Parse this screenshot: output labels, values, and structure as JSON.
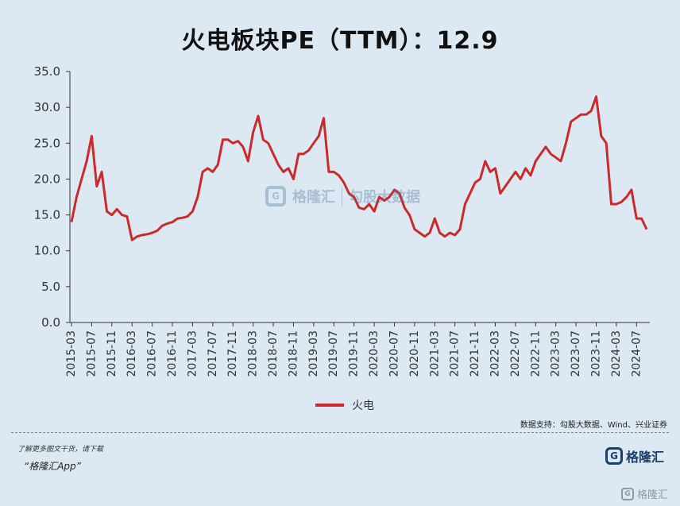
{
  "title": "火电板块PE（TTM）：12.9",
  "source": "数据支持：勾股大数据、Wind、兴业证券",
  "promo": {
    "line1": "了解更多图文干货，请下载",
    "line2": "“格隆汇App”"
  },
  "brand": {
    "name": "格隆汇",
    "icon_letter": "G"
  },
  "watermark": {
    "brand": "格隆汇",
    "partner": "勾股大数据"
  },
  "colors": {
    "series": "#cc2a2a",
    "axis": "#333333",
    "background": "#dce9f2"
  },
  "chart_data": {
    "type": "line",
    "title": "火电板块PE（TTM）：12.9",
    "xlabel": "",
    "ylabel": "",
    "ylim": [
      0,
      35
    ],
    "yticks": [
      "0.0",
      "5.0",
      "10.0",
      "15.0",
      "20.0",
      "25.0",
      "30.0",
      "35.0"
    ],
    "xticks": [
      "2015-03",
      "2015-07",
      "2015-11",
      "2016-03",
      "2016-07",
      "2016-11",
      "2017-03",
      "2017-07",
      "2017-11",
      "2018-03",
      "2018-07",
      "2018-11",
      "2019-03",
      "2019-07",
      "2019-11",
      "2020-03",
      "2020-07",
      "2020-11",
      "2021-03",
      "2021-07",
      "2021-11",
      "2022-03",
      "2022-07",
      "2022-11",
      "2023-03",
      "2023-07",
      "2023-11",
      "2024-03",
      "2024-07"
    ],
    "grid": false,
    "legend_position": "bottom",
    "series": [
      {
        "name": "火电",
        "x": [
          "2015-03",
          "2015-04",
          "2015-05",
          "2015-06",
          "2015-07",
          "2015-08",
          "2015-09",
          "2015-10",
          "2015-11",
          "2015-12",
          "2016-01",
          "2016-02",
          "2016-03",
          "2016-04",
          "2016-05",
          "2016-06",
          "2016-07",
          "2016-08",
          "2016-09",
          "2016-10",
          "2016-11",
          "2016-12",
          "2017-01",
          "2017-02",
          "2017-03",
          "2017-04",
          "2017-05",
          "2017-06",
          "2017-07",
          "2017-08",
          "2017-09",
          "2017-10",
          "2017-11",
          "2017-12",
          "2018-01",
          "2018-02",
          "2018-03",
          "2018-04",
          "2018-05",
          "2018-06",
          "2018-07",
          "2018-08",
          "2018-09",
          "2018-10",
          "2018-11",
          "2018-12",
          "2019-01",
          "2019-02",
          "2019-03",
          "2019-04",
          "2019-05",
          "2019-06",
          "2019-07",
          "2019-08",
          "2019-09",
          "2019-10",
          "2019-11",
          "2019-12",
          "2020-01",
          "2020-02",
          "2020-03",
          "2020-04",
          "2020-05",
          "2020-06",
          "2020-07",
          "2020-08",
          "2020-09",
          "2020-10",
          "2020-11",
          "2020-12",
          "2021-01",
          "2021-02",
          "2021-03",
          "2021-04",
          "2021-05",
          "2021-06",
          "2021-07",
          "2021-08",
          "2021-09",
          "2021-10",
          "2021-11",
          "2021-12",
          "2022-01",
          "2022-02",
          "2022-03",
          "2022-04",
          "2022-05",
          "2022-06",
          "2022-07",
          "2022-08",
          "2022-09",
          "2022-10",
          "2022-11",
          "2022-12",
          "2023-01",
          "2023-02",
          "2023-03",
          "2023-04",
          "2023-05",
          "2023-06",
          "2023-07",
          "2023-08",
          "2023-09",
          "2023-10",
          "2023-11",
          "2023-12",
          "2024-01",
          "2024-02",
          "2024-03",
          "2024-04",
          "2024-05",
          "2024-06",
          "2024-07",
          "2024-08",
          "2024-09"
        ],
        "values": [
          14.0,
          17.5,
          20.0,
          22.5,
          26.0,
          19.0,
          21.0,
          15.5,
          15.0,
          15.8,
          15.0,
          14.8,
          11.5,
          12.0,
          12.2,
          12.3,
          12.5,
          12.8,
          13.5,
          13.8,
          14.0,
          14.5,
          14.6,
          14.8,
          15.5,
          17.5,
          21.0,
          21.5,
          21.0,
          22.0,
          25.5,
          25.5,
          25.0,
          25.3,
          24.5,
          22.5,
          26.5,
          28.8,
          25.5,
          25.0,
          23.5,
          22.0,
          21.0,
          21.5,
          20.0,
          23.5,
          23.5,
          24.0,
          25.0,
          26.0,
          28.5,
          21.0,
          21.0,
          20.5,
          19.5,
          18.0,
          17.5,
          16.0,
          15.8,
          16.5,
          15.5,
          17.5,
          17.0,
          17.5,
          18.5,
          18.0,
          16.0,
          15.0,
          13.0,
          12.5,
          12.0,
          12.5,
          14.5,
          12.5,
          12.0,
          12.5,
          12.2,
          13.0,
          16.5,
          18.0,
          19.5,
          20.0,
          22.5,
          21.0,
          21.5,
          18.0,
          19.0,
          20.0,
          21.0,
          20.0,
          21.5,
          20.5,
          22.5,
          23.5,
          24.5,
          23.5,
          23.0,
          22.5,
          25.0,
          28.0,
          28.5,
          29.0,
          29.0,
          29.5,
          31.5,
          26.0,
          25.0,
          16.5,
          16.5,
          16.8,
          17.5,
          18.5,
          14.5,
          14.5,
          13.0
        ]
      }
    ]
  }
}
